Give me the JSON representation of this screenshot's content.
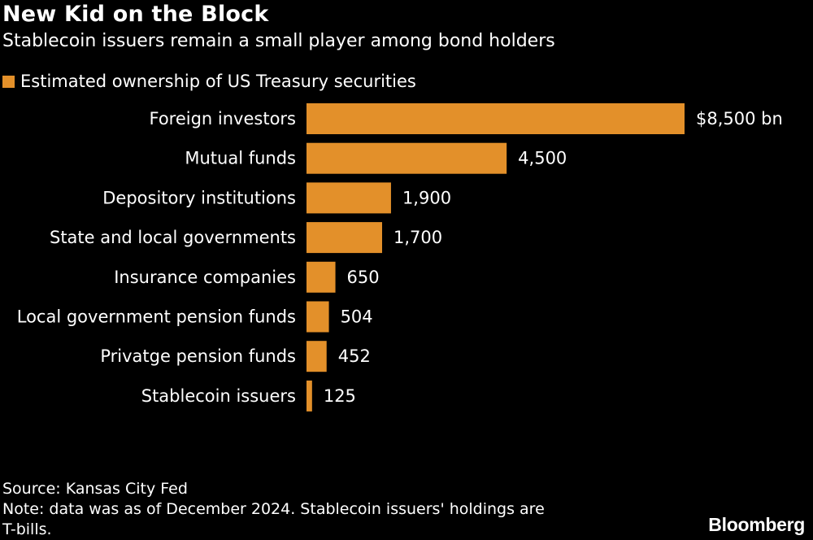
{
  "header": {
    "title": "New Kid on the Block",
    "subtitle": "Stablecoin issuers remain a small player among bond holders"
  },
  "colors": {
    "background": "#000000",
    "bar": "#e3902a",
    "text": "#ffffff"
  },
  "chart_data": {
    "type": "bar",
    "orientation": "horizontal",
    "title": "New Kid on the Block",
    "subtitle": "Stablecoin issuers remain a small player among bond holders",
    "legend": [
      "Estimated ownership of US Treasury securities"
    ],
    "legend_position": "top-left",
    "categories": [
      "Foreign investors",
      "Mutual funds",
      "Depository institutions",
      "State and local governments",
      "Insurance companies",
      "Local government pension funds",
      "Privatge pension funds",
      "Stablecoin issuers"
    ],
    "values": [
      8500,
      4500,
      1900,
      1700,
      650,
      504,
      452,
      125
    ],
    "value_labels": [
      "$8,500 bn",
      "4,500",
      "1,900",
      "1,700",
      "650",
      "504",
      "452",
      "125"
    ],
    "unit": "bn",
    "xlabel": "",
    "ylabel": "",
    "xlim": [
      0,
      8500
    ],
    "grid": false
  },
  "footer": {
    "source": "Source: Kansas City Fed",
    "note_line1": "Note: data was as of December 2024. Stablecoin issuers' holdings are",
    "note_line2": "T-bills.",
    "brand": "Bloomberg"
  }
}
